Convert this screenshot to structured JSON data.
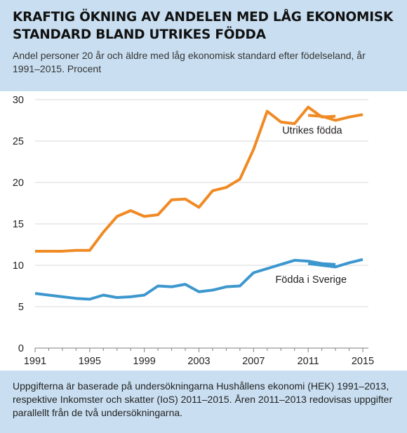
{
  "header": {
    "title": "KRAFTIG ÖKNING AV ANDELEN MED LÅG EKONOMISK STANDARD BLAND UTRIKES FÖDDA",
    "subtitle": "Andel personer 20 år och äldre med låg ekonomisk standard efter födelseland, år 1991–2015. Procent"
  },
  "footnote": "Uppgifterna är baserade på undersökningarna Hushållens ekonomi (HEK) 1991–2013, respektive Inkomster och skatter (IoS) 2011–2015. Åren 2011–2013 redovisas uppgifter parallellt från de två undersökningarna.",
  "colors": {
    "utrikes": "#f08a24",
    "sverige": "#3d97cf",
    "grid": "#d9d9d9",
    "axis": "#7f7f7f"
  },
  "chart_data": {
    "type": "line",
    "xlim": [
      1991,
      2015
    ],
    "ylim": [
      0,
      30
    ],
    "xticks": [
      1991,
      1995,
      1999,
      2003,
      2007,
      2011,
      2015
    ],
    "yticks": [
      0,
      5,
      10,
      15,
      20,
      25,
      30
    ],
    "grid": true,
    "series": [
      {
        "name": "Utrikes födda",
        "color": "#f08a24",
        "x": [
          1991,
          1992,
          1993,
          1994,
          1995,
          1996,
          1997,
          1998,
          1999,
          2000,
          2001,
          2002,
          2003,
          2004,
          2005,
          2006,
          2007,
          2008,
          2009,
          2010,
          2011,
          2012,
          2013
        ],
        "y": [
          11.7,
          11.7,
          11.7,
          11.8,
          11.8,
          14.0,
          15.9,
          16.6,
          15.9,
          16.1,
          17.9,
          18.0,
          17.0,
          19.0,
          19.4,
          20.4,
          24.0,
          28.6,
          27.3,
          27.1,
          29.1,
          27.9,
          28.0
        ]
      },
      {
        "name": "Utrikes födda (IoS)",
        "color": "#f08a24",
        "x": [
          2011,
          2012,
          2013,
          2014,
          2015
        ],
        "y": [
          28.1,
          28.0,
          27.5,
          27.9,
          28.2
        ]
      },
      {
        "name": "Födda i Sverige",
        "color": "#3d97cf",
        "x": [
          1991,
          1992,
          1993,
          1994,
          1995,
          1996,
          1997,
          1998,
          1999,
          2000,
          2001,
          2002,
          2003,
          2004,
          2005,
          2006,
          2007,
          2008,
          2009,
          2010,
          2011,
          2012,
          2013
        ],
        "y": [
          6.6,
          6.4,
          6.2,
          6.0,
          5.9,
          6.4,
          6.1,
          6.2,
          6.4,
          7.5,
          7.4,
          7.7,
          6.8,
          7.0,
          7.4,
          7.5,
          9.1,
          9.6,
          10.1,
          10.6,
          10.5,
          10.2,
          10.1
        ]
      },
      {
        "name": "Födda i Sverige (IoS)",
        "color": "#3d97cf",
        "x": [
          2011,
          2012,
          2013,
          2014,
          2015
        ],
        "y": [
          10.2,
          10.0,
          9.8,
          10.3,
          10.7
        ]
      }
    ],
    "annotations": [
      {
        "text": "Utrikes födda",
        "x": 2009.1,
        "y": 25.9
      },
      {
        "text": "Födda i Sverige",
        "x": 2008.6,
        "y": 7.9
      }
    ]
  }
}
